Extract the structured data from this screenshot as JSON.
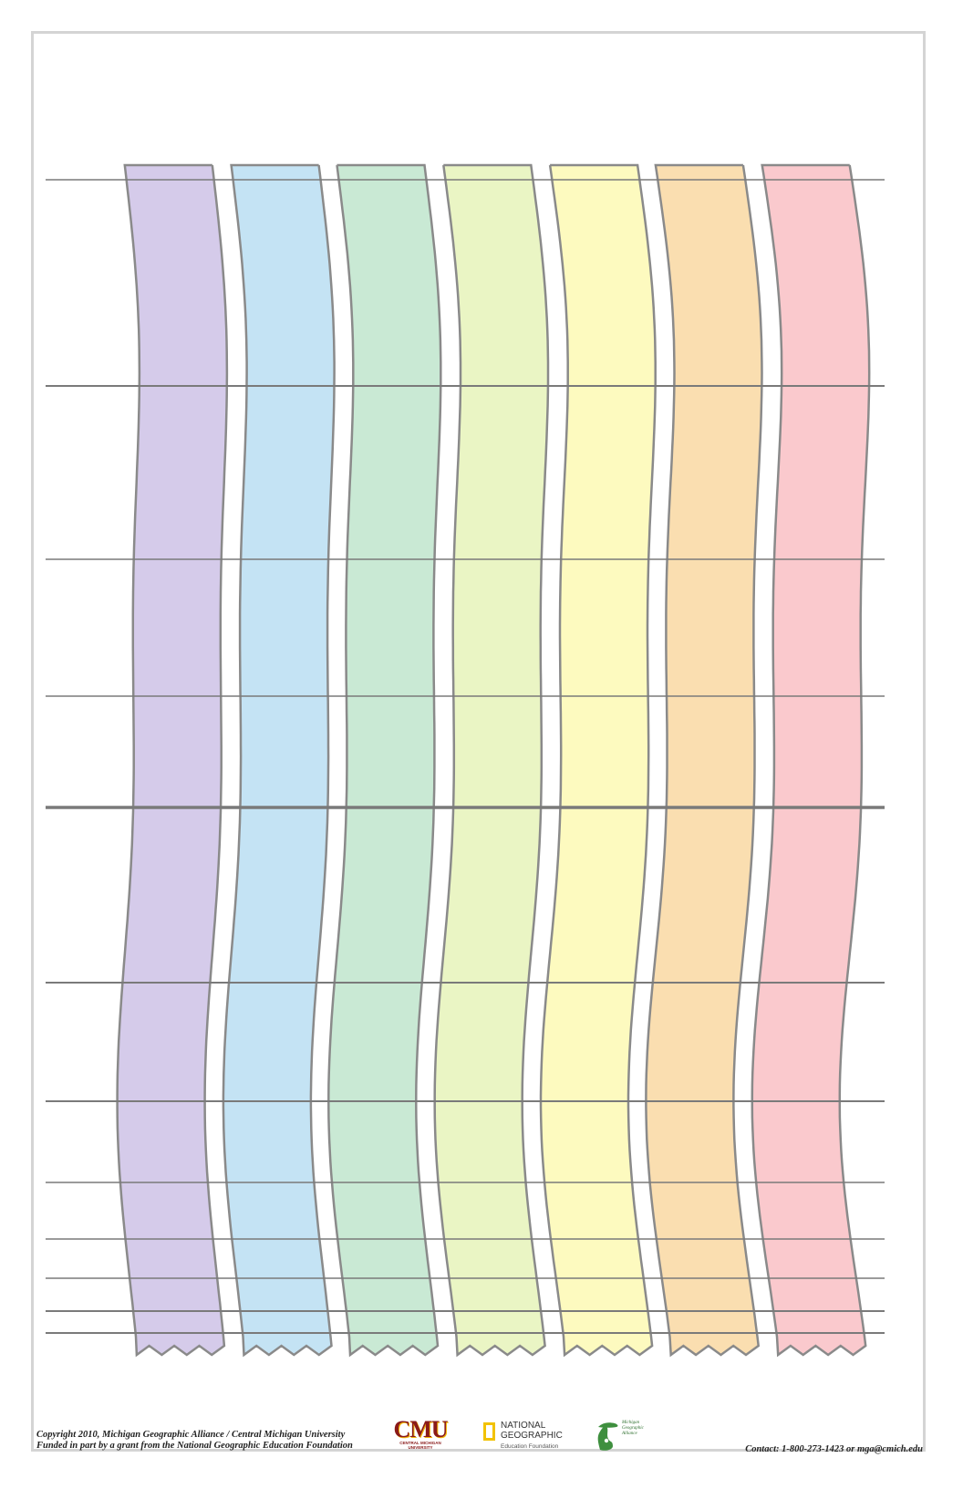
{
  "colors": {
    "ribbons": [
      "#d5cbea",
      "#c4e3f4",
      "#c9e9d4",
      "#eaf5c4",
      "#fdfabf",
      "#fadeb0",
      "#fac9cd"
    ],
    "ribbon_outline": "#8a8a8a",
    "rule_line": "#7a7a7a",
    "frame": "#d4d4d4"
  },
  "footer": {
    "copyright_line1": "Copyright 2010, Michigan Geographic Alliance / Central Michigan University",
    "copyright_line2": "Funded in part by a grant from the National Geographic Education Foundation",
    "contact": "Contact: 1-800-273-1423 or mga@cmich.edu"
  },
  "logos": {
    "cmu": {
      "mark": "CMU",
      "subtitle": "CENTRAL MICHIGAN UNIVERSITY",
      "icon": "cmu-logo"
    },
    "national_geographic": {
      "name_line1": "NATIONAL",
      "name_line2": "GEOGRAPHIC",
      "subtitle": "Education Foundation",
      "icon": "yellow-border-icon"
    },
    "mga": {
      "line1": "Michigan",
      "line2": "Geographic",
      "line3": "Alliance",
      "icon": "michigan-map-icon"
    }
  }
}
